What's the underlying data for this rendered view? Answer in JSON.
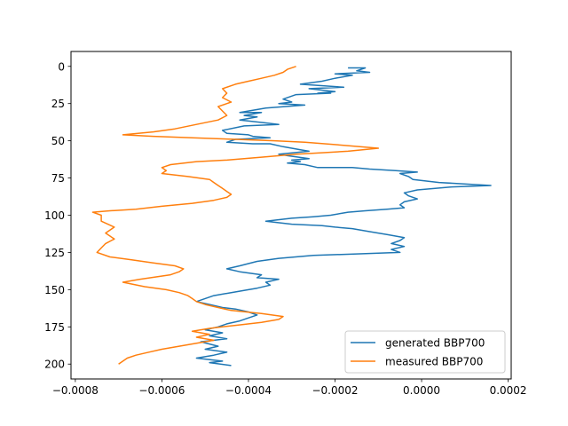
{
  "chart_data": {
    "type": "line",
    "title": "",
    "xlabel": "",
    "ylabel": "",
    "xlim": [
      -0.00081,
      0.000207
    ],
    "ylim": [
      210,
      -10
    ],
    "y_inverted": true,
    "x_ticks": [
      -0.0008,
      -0.0006,
      -0.0004,
      -0.0002,
      0.0,
      0.0002
    ],
    "x_tick_labels": [
      "−0.0008",
      "−0.0006",
      "−0.0004",
      "−0.0002",
      "0.0000",
      "0.0002"
    ],
    "y_ticks": [
      0,
      25,
      50,
      75,
      100,
      125,
      150,
      175,
      200
    ],
    "y_tick_labels": [
      "0",
      "25",
      "50",
      "75",
      "100",
      "125",
      "150",
      "175",
      "200"
    ],
    "grid": false,
    "legend_position": "lower-right",
    "series": [
      {
        "name": "generated BBP700",
        "color": "#1f77b4",
        "points": [
          [
            -0.00017,
            1
          ],
          [
            -0.00013,
            1
          ],
          [
            -0.00015,
            3
          ],
          [
            -0.00012,
            4
          ],
          [
            -0.0002,
            5
          ],
          [
            -0.00016,
            6
          ],
          [
            -0.0002,
            8
          ],
          [
            -0.00023,
            10
          ],
          [
            -0.00028,
            12
          ],
          [
            -0.00018,
            14
          ],
          [
            -0.00026,
            15
          ],
          [
            -0.0002,
            17
          ],
          [
            -0.00024,
            18
          ],
          [
            -0.00021,
            18
          ],
          [
            -0.00029,
            19
          ],
          [
            -0.00032,
            22
          ],
          [
            -0.0003,
            24
          ],
          [
            -0.00033,
            25
          ],
          [
            -0.00027,
            26
          ],
          [
            -0.00036,
            28
          ],
          [
            -0.00042,
            31
          ],
          [
            -0.00037,
            31
          ],
          [
            -0.00041,
            33
          ],
          [
            -0.00038,
            34
          ],
          [
            -0.00042,
            36
          ],
          [
            -0.00036,
            38
          ],
          [
            -0.00033,
            39
          ],
          [
            -0.00041,
            40
          ],
          [
            -0.00046,
            43
          ],
          [
            -0.00045,
            45
          ],
          [
            -0.0004,
            46
          ],
          [
            -0.00039,
            47
          ],
          [
            -0.00035,
            48
          ],
          [
            -0.00043,
            49
          ],
          [
            -0.00045,
            51
          ],
          [
            -0.00039,
            52
          ],
          [
            -0.00035,
            52
          ],
          [
            -0.00032,
            54
          ],
          [
            -0.00028,
            56
          ],
          [
            -0.00026,
            57
          ],
          [
            -0.00033,
            59
          ],
          [
            -0.00031,
            60
          ],
          [
            -0.00026,
            62
          ],
          [
            -0.0003,
            63
          ],
          [
            -0.00028,
            64
          ],
          [
            -0.00031,
            65
          ],
          [
            -0.00027,
            66
          ],
          [
            -0.00024,
            68
          ],
          [
            -0.00016,
            68
          ],
          [
            -0.00012,
            69
          ],
          [
            -6e-05,
            70
          ],
          [
            -1e-05,
            71
          ],
          [
            -5e-05,
            72
          ],
          [
            -3e-05,
            74
          ],
          [
            -2e-05,
            76
          ],
          [
            4e-05,
            78
          ],
          [
            0.00016,
            80
          ],
          [
            7e-05,
            81
          ],
          [
            -1e-05,
            83
          ],
          [
            -4e-05,
            85
          ],
          [
            -3e-05,
            87
          ],
          [
            -1e-05,
            89
          ],
          [
            -4e-05,
            91
          ],
          [
            -5e-05,
            93
          ],
          [
            -4e-05,
            95
          ],
          [
            -8e-05,
            96
          ],
          [
            -0.00013,
            97
          ],
          [
            -0.00017,
            98
          ],
          [
            -0.00021,
            100
          ],
          [
            -0.00025,
            101
          ],
          [
            -0.0003,
            102
          ],
          [
            -0.00036,
            104
          ],
          [
            -0.0003,
            106
          ],
          [
            -0.00023,
            107
          ],
          [
            -0.0002,
            108
          ],
          [
            -0.00016,
            109
          ],
          [
            -0.00012,
            111
          ],
          [
            -8e-05,
            113
          ],
          [
            -4e-05,
            115
          ],
          [
            -5e-05,
            117
          ],
          [
            -7e-05,
            119
          ],
          [
            -4e-05,
            121
          ],
          [
            -7e-05,
            123
          ],
          [
            -5e-05,
            125
          ],
          [
            -0.00015,
            126
          ],
          [
            -0.00025,
            127
          ],
          [
            -0.00033,
            129
          ],
          [
            -0.00038,
            131
          ],
          [
            -0.00042,
            134
          ],
          [
            -0.00045,
            136
          ],
          [
            -0.00042,
            138
          ],
          [
            -0.00037,
            140
          ],
          [
            -0.00038,
            142
          ],
          [
            -0.00033,
            143
          ],
          [
            -0.00036,
            145
          ],
          [
            -0.00035,
            147
          ],
          [
            -0.00038,
            149
          ],
          [
            -0.0004,
            150
          ],
          [
            -0.00044,
            152
          ],
          [
            -0.00048,
            154
          ],
          [
            -0.00052,
            158
          ],
          [
            -0.00049,
            160
          ],
          [
            -0.00046,
            162
          ],
          [
            -0.00043,
            163
          ],
          [
            -0.0004,
            165
          ],
          [
            -0.00038,
            167
          ],
          [
            -0.0004,
            169
          ],
          [
            -0.00042,
            171
          ],
          [
            -0.00045,
            173
          ],
          [
            -0.00047,
            175
          ],
          [
            -0.0005,
            177
          ],
          [
            -0.00046,
            179
          ],
          [
            -0.00049,
            181
          ],
          [
            -0.00045,
            183
          ],
          [
            -0.00051,
            185
          ],
          [
            -0.00047,
            188
          ],
          [
            -0.0005,
            190
          ],
          [
            -0.00045,
            192
          ],
          [
            -0.00048,
            194
          ],
          [
            -0.00052,
            196
          ],
          [
            -0.00046,
            198
          ],
          [
            -0.00049,
            199
          ],
          [
            -0.00044,
            201
          ]
        ]
      },
      {
        "name": "measured BBP700",
        "color": "#ff7f0e",
        "points": [
          [
            -0.00029,
            0
          ],
          [
            -0.00031,
            2
          ],
          [
            -0.00032,
            4
          ],
          [
            -0.00034,
            6
          ],
          [
            -0.00037,
            8
          ],
          [
            -0.0004,
            10
          ],
          [
            -0.00043,
            12
          ],
          [
            -0.00046,
            15
          ],
          [
            -0.00045,
            18
          ],
          [
            -0.00046,
            21
          ],
          [
            -0.00044,
            24
          ],
          [
            -0.00047,
            27
          ],
          [
            -0.00046,
            30
          ],
          [
            -0.00045,
            33
          ],
          [
            -0.00047,
            36
          ],
          [
            -0.00052,
            39
          ],
          [
            -0.00057,
            42
          ],
          [
            -0.00062,
            44
          ],
          [
            -0.00069,
            46
          ],
          [
            -0.00062,
            47
          ],
          [
            -0.00053,
            48
          ],
          [
            -0.00043,
            49
          ],
          [
            -0.00034,
            50
          ],
          [
            -0.00027,
            51
          ],
          [
            -0.00018,
            53
          ],
          [
            -0.0001,
            55
          ],
          [
            -0.00017,
            57
          ],
          [
            -0.00023,
            58
          ],
          [
            -0.00029,
            59
          ],
          [
            -0.00037,
            61
          ],
          [
            -0.00045,
            63
          ],
          [
            -0.00052,
            64
          ],
          [
            -0.00058,
            66
          ],
          [
            -0.0006,
            68
          ],
          [
            -0.00059,
            70
          ],
          [
            -0.0006,
            72
          ],
          [
            -0.00054,
            74
          ],
          [
            -0.00049,
            76
          ],
          [
            -0.00048,
            78
          ],
          [
            -0.00047,
            80
          ],
          [
            -0.00046,
            82
          ],
          [
            -0.00045,
            84
          ],
          [
            -0.00044,
            86
          ],
          [
            -0.00045,
            88
          ],
          [
            -0.00048,
            90
          ],
          [
            -0.00053,
            92
          ],
          [
            -0.0006,
            94
          ],
          [
            -0.00066,
            96
          ],
          [
            -0.00072,
            97
          ],
          [
            -0.00076,
            98
          ],
          [
            -0.00074,
            100
          ],
          [
            -0.00074,
            104
          ],
          [
            -0.00071,
            108
          ],
          [
            -0.00073,
            112
          ],
          [
            -0.00071,
            116
          ],
          [
            -0.00073,
            119
          ],
          [
            -0.00074,
            122
          ],
          [
            -0.00075,
            125
          ],
          [
            -0.00072,
            128
          ],
          [
            -0.00067,
            130
          ],
          [
            -0.00062,
            132
          ],
          [
            -0.00057,
            134
          ],
          [
            -0.00055,
            136
          ],
          [
            -0.00056,
            138
          ],
          [
            -0.00058,
            140
          ],
          [
            -0.00065,
            143
          ],
          [
            -0.00069,
            145
          ],
          [
            -0.00064,
            148
          ],
          [
            -0.00059,
            150
          ],
          [
            -0.00056,
            152
          ],
          [
            -0.00054,
            154
          ],
          [
            -0.00053,
            156
          ],
          [
            -0.00052,
            158
          ],
          [
            -0.0005,
            160
          ],
          [
            -0.00047,
            162
          ],
          [
            -0.00044,
            164
          ],
          [
            -0.00037,
            166
          ],
          [
            -0.00032,
            168
          ],
          [
            -0.00033,
            170
          ],
          [
            -0.00037,
            172
          ],
          [
            -0.00043,
            174
          ],
          [
            -0.00049,
            176
          ],
          [
            -0.00053,
            178
          ],
          [
            -0.00049,
            180
          ],
          [
            -0.00052,
            182
          ],
          [
            -0.00048,
            184
          ],
          [
            -0.00052,
            186
          ],
          [
            -0.00056,
            188
          ],
          [
            -0.0006,
            190
          ],
          [
            -0.00063,
            192
          ],
          [
            -0.00066,
            194
          ],
          [
            -0.00068,
            196
          ],
          [
            -0.00069,
            198
          ],
          [
            -0.0007,
            200
          ]
        ]
      }
    ]
  }
}
